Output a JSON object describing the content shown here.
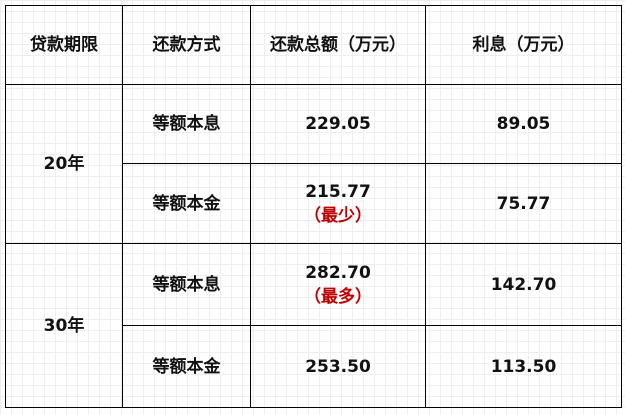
{
  "headers": [
    "贷款期限",
    "还款方式",
    "还款总额（万元）",
    "利息（万元）"
  ],
  "groups": [
    {
      "term": "20年",
      "rows": [
        {
          "method": "等额本息",
          "total": "229.05",
          "note": "",
          "interest": "89.05"
        },
        {
          "method": "等额本金",
          "total": "215.77",
          "note": "（最少）",
          "interest": "75.77"
        }
      ]
    },
    {
      "term": "30年",
      "rows": [
        {
          "method": "等额本息",
          "total": "282.70",
          "note": "（最多）",
          "interest": "142.70"
        },
        {
          "method": "等额本金",
          "total": "253.50",
          "note": "",
          "interest": "113.50"
        }
      ]
    }
  ],
  "colors": {
    "note": "#c00000"
  }
}
